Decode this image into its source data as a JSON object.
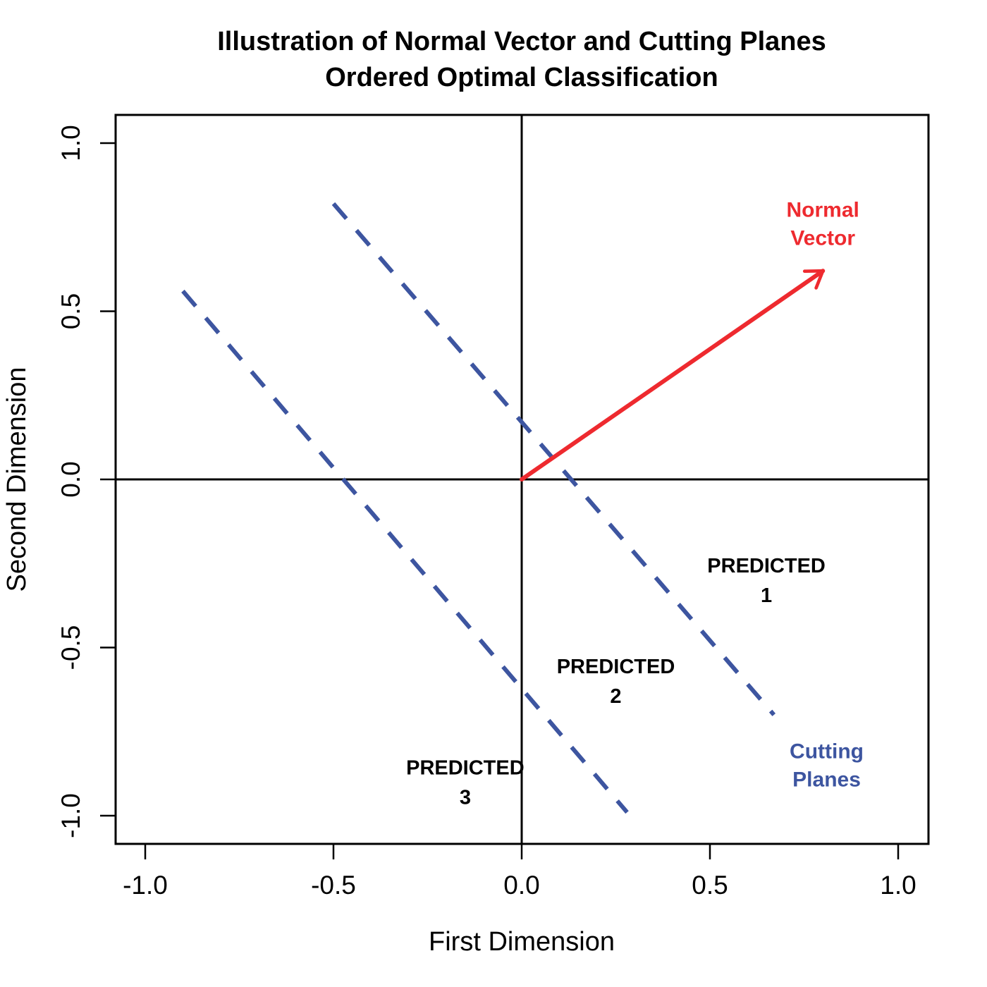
{
  "chart_data": {
    "type": "line",
    "title": "Illustration of Normal Vector and Cutting Planes",
    "subtitle": "Ordered Optimal Classification",
    "xlabel": "First Dimension",
    "ylabel": "Second Dimension",
    "xlim": [
      -1.08,
      1.08
    ],
    "ylim": [
      -1.08,
      1.08
    ],
    "xticks": [
      -1.0,
      -0.5,
      0.0,
      0.5,
      1.0
    ],
    "yticks": [
      -1.0,
      -0.5,
      0.0,
      0.5,
      1.0
    ],
    "xtick_labels": [
      "-1.0",
      "-0.5",
      "0.0",
      "0.5",
      "1.0"
    ],
    "ytick_labels": [
      "-1.0",
      "-0.5",
      "0.0",
      "0.5",
      "1.0"
    ],
    "grid": false,
    "reference_lines": {
      "x": 0,
      "y": 0
    },
    "normal_vector": {
      "from": [
        0.0,
        0.0
      ],
      "to": [
        0.8,
        0.62
      ],
      "color": "#ee2a2f",
      "label": [
        "Normal",
        "Vector"
      ],
      "label_at": [
        0.8,
        0.76
      ]
    },
    "cutting_planes": {
      "color": "#3d55a0",
      "style": "dashed",
      "label": [
        "Cutting",
        "Planes"
      ],
      "label_at": [
        0.81,
        -0.85
      ],
      "lines": [
        {
          "x": [
            -0.5,
            0.67
          ],
          "y": [
            0.82,
            -0.7
          ]
        },
        {
          "x": [
            -0.9,
            0.28
          ],
          "y": [
            0.56,
            -0.99
          ]
        }
      ]
    },
    "regions": [
      {
        "lines": [
          "PREDICTED",
          "1"
        ],
        "at": [
          0.65,
          -0.3
        ]
      },
      {
        "lines": [
          "PREDICTED",
          "2"
        ],
        "at": [
          0.25,
          -0.6
        ]
      },
      {
        "lines": [
          "PREDICTED",
          "3"
        ],
        "at": [
          -0.15,
          -0.9
        ]
      }
    ]
  }
}
